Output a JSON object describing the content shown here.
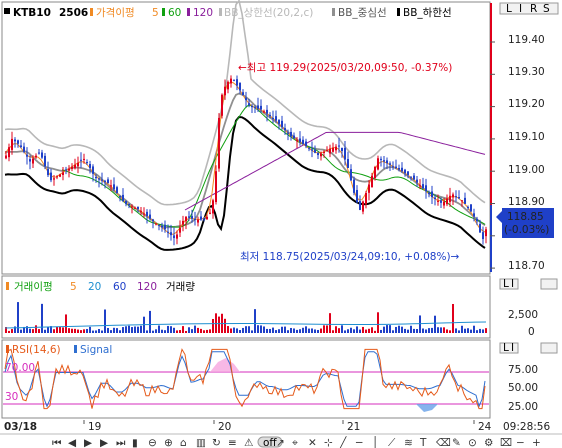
{
  "legend_main": {
    "symbol": "KTB10",
    "contract": "2506",
    "ma_label": "가격이평",
    "ma_periods": [
      "5",
      "60",
      "120"
    ],
    "bb_upper": "BB_상한선(20,2,c)",
    "bb_mid": "BB_중심선",
    "bb_lower": "BB_하한선"
  },
  "annotations": {
    "high": "←최고 119.29(2025/03/20,09:50, -0.37%)",
    "low": "최저 118.75(2025/03/24,09:10, +0.08%)→"
  },
  "current_price": {
    "price": "118.85",
    "change": "(-0.03%)"
  },
  "right_tabs": [
    "L",
    "I",
    "R",
    "S"
  ],
  "panel_tabs": [
    "L",
    "I"
  ],
  "price_axis": [
    "119.40",
    "119.30",
    "119.20",
    "119.10",
    "119.00",
    "118.90",
    "118.70"
  ],
  "volume_legend": {
    "label": "거래이평",
    "periods": [
      "5",
      "20",
      "60",
      "120"
    ],
    "volume": "거래량"
  },
  "volume_axis": [
    "2,500",
    "0"
  ],
  "rsi_legend": {
    "rsi": "RSI(14,6)",
    "signal": "Signal"
  },
  "rsi_levels": {
    "upper": "70.00",
    "lower": "30"
  },
  "rsi_axis": [
    "75.00",
    "50.00",
    "25.00"
  ],
  "date_axis": {
    "start": "03/18",
    "days": [
      "19",
      "20",
      "21",
      "24"
    ]
  },
  "time_display": "09:28:56",
  "colors": {
    "candle_up": "#e0001b",
    "candle_down": "#1f40c8",
    "ma5": "#f08a24",
    "ma60": "#10a010",
    "ma120": "#8a1f9c",
    "bb_upper": "#b8b8b8",
    "bb_mid": "#909090",
    "bb_lower": "#000000",
    "rsi": "#e55a1a",
    "signal": "#2f6fd0",
    "rsi_level": "#d62dbd"
  },
  "toolbar_icons": [
    "first-icon",
    "prev-icon",
    "play-icon",
    "next-icon",
    "last-icon",
    "bar-icon",
    "zoom-out-icon",
    "zoom-in-icon",
    "home-icon",
    "split-icon",
    "refresh-icon",
    "layers-icon",
    "alert-icon",
    "off-toggle",
    "arrow-icon",
    "pin-icon",
    "cross-icon",
    "crosshair-icon",
    "line-icon",
    "hline-icon",
    "vline-icon",
    "trend-icon",
    "fib-icon",
    "text-icon",
    "eraser-icon",
    "brush-icon",
    "magnet-icon",
    "settings-icon",
    "delete-icon",
    "minus-icon",
    "plus-icon"
  ],
  "toolbar_text": {
    "off": "off"
  }
}
